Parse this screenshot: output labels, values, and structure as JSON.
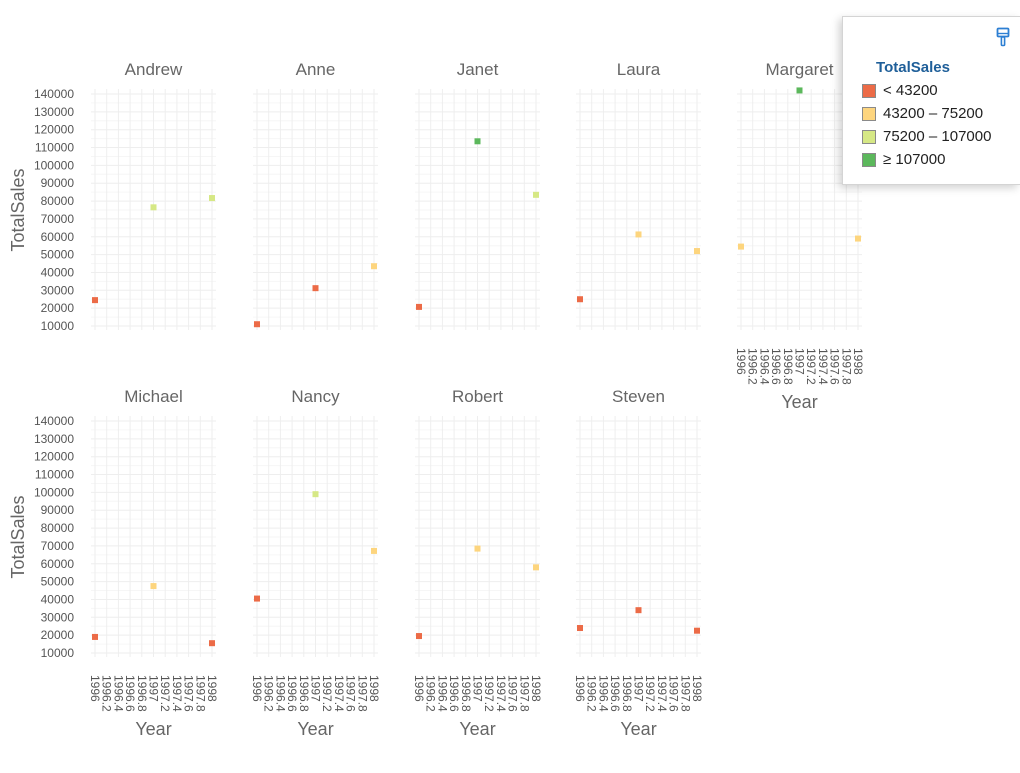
{
  "chart_data": {
    "type": "scatter",
    "facet_by": "Employee",
    "xlabel": "Year",
    "ylabel": "TotalSales",
    "xlim": [
      1996,
      1998
    ],
    "ylim": [
      10000,
      140000
    ],
    "x_ticks": [
      "1996",
      "1996.2",
      "1996.4",
      "1996.6",
      "1996.8",
      "1997",
      "1997.2",
      "1997.4",
      "1997.6",
      "1997.8",
      "1998"
    ],
    "y_ticks": [
      "10000",
      "20000",
      "30000",
      "40000",
      "50000",
      "60000",
      "70000",
      "80000",
      "90000",
      "100000",
      "110000",
      "120000",
      "130000",
      "140000"
    ],
    "grid": true,
    "color_scale": {
      "title": "TotalSales",
      "bins": [
        {
          "label": "< 43200",
          "color": "#ec6b47"
        },
        {
          "label": "43200 – 75200",
          "color": "#fdd57e"
        },
        {
          "label": "75200 – 107000",
          "color": "#d6e885"
        },
        {
          "label": "≥ 107000",
          "color": "#5cb85c"
        }
      ]
    },
    "facets": [
      {
        "name": "Andrew",
        "points": [
          {
            "x": 1996,
            "y": 24500
          },
          {
            "x": 1997,
            "y": 76500
          },
          {
            "x": 1998,
            "y": 81700
          }
        ]
      },
      {
        "name": "Anne",
        "points": [
          {
            "x": 1996,
            "y": 11000
          },
          {
            "x": 1997,
            "y": 31200
          },
          {
            "x": 1998,
            "y": 43500
          }
        ]
      },
      {
        "name": "Janet",
        "points": [
          {
            "x": 1996,
            "y": 20700
          },
          {
            "x": 1997,
            "y": 113500
          },
          {
            "x": 1998,
            "y": 83500
          }
        ]
      },
      {
        "name": "Laura",
        "points": [
          {
            "x": 1996,
            "y": 25000
          },
          {
            "x": 1997,
            "y": 61300
          },
          {
            "x": 1998,
            "y": 52000
          }
        ]
      },
      {
        "name": "Margaret",
        "points": [
          {
            "x": 1996,
            "y": 54500
          },
          {
            "x": 1997,
            "y": 142000
          },
          {
            "x": 1998,
            "y": 59000
          }
        ]
      },
      {
        "name": "Michael",
        "points": [
          {
            "x": 1996,
            "y": 19000
          },
          {
            "x": 1997,
            "y": 47500
          },
          {
            "x": 1998,
            "y": 15500
          }
        ]
      },
      {
        "name": "Nancy",
        "points": [
          {
            "x": 1996,
            "y": 40500
          },
          {
            "x": 1997,
            "y": 99000
          },
          {
            "x": 1998,
            "y": 67200
          }
        ]
      },
      {
        "name": "Robert",
        "points": [
          {
            "x": 1996,
            "y": 19500
          },
          {
            "x": 1997,
            "y": 68500
          },
          {
            "x": 1998,
            "y": 58000
          }
        ]
      },
      {
        "name": "Steven",
        "points": [
          {
            "x": 1996,
            "y": 24000
          },
          {
            "x": 1997,
            "y": 34000
          },
          {
            "x": 1998,
            "y": 22500
          }
        ]
      }
    ]
  },
  "legend": {
    "title": "TotalSales",
    "items": [
      {
        "label": "< 43200",
        "color": "#ec6b47"
      },
      {
        "label": "43200 – 75200",
        "color": "#fdd57e"
      },
      {
        "label": "75200 – 107000",
        "color": "#d6e885"
      },
      {
        "label": "≥ 107000",
        "color": "#5cb85c"
      }
    ],
    "toggle_icon": "paintbrush-icon"
  }
}
